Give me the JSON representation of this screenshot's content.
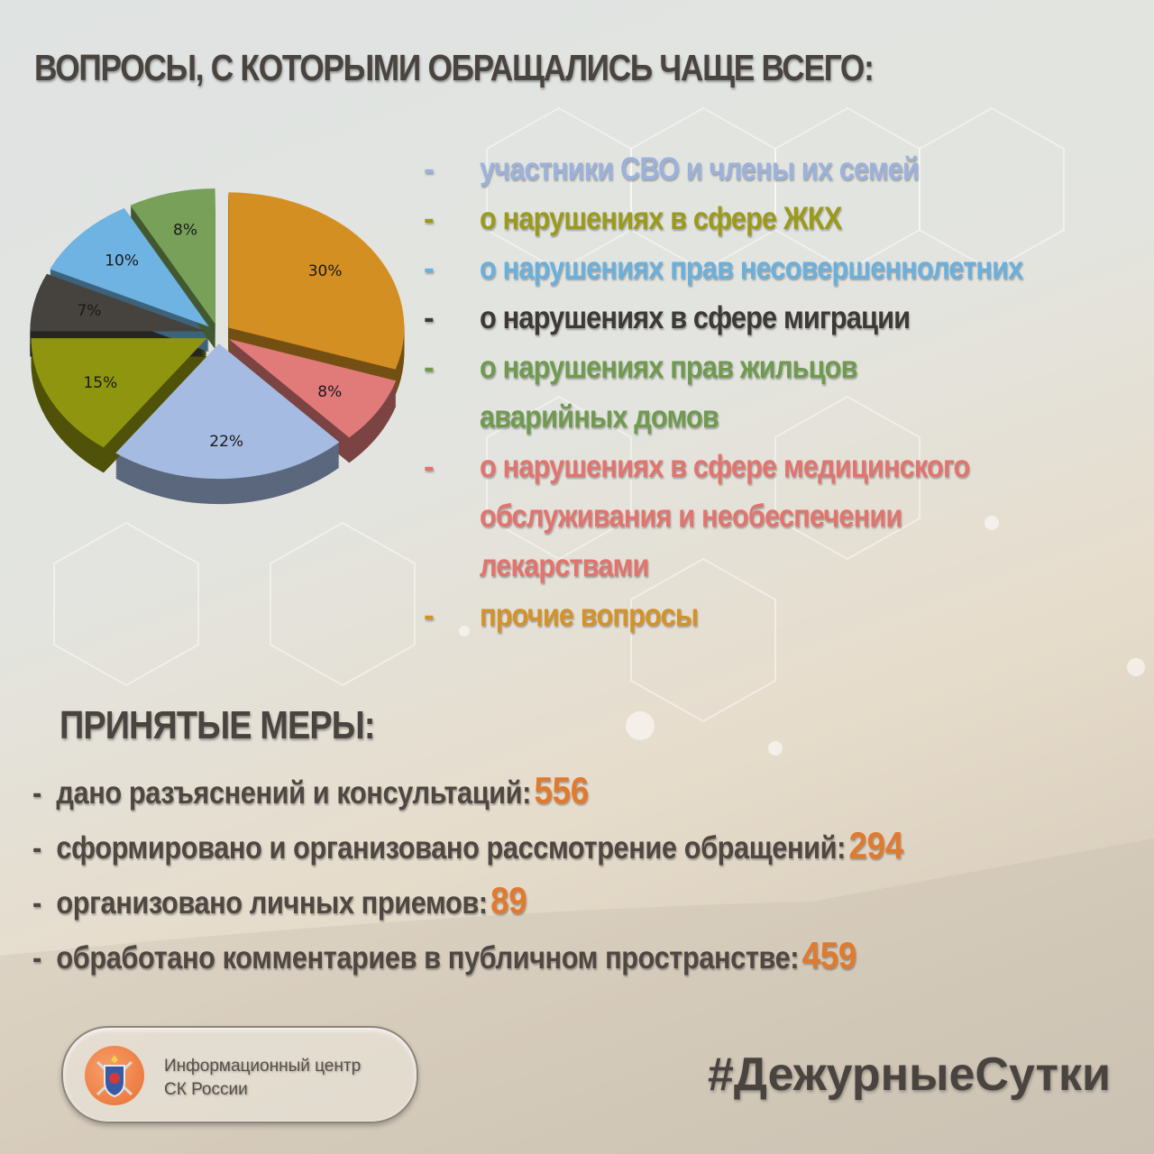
{
  "title": "ВОПРОСЫ, С КОТОРЫМИ ОБРАЩАЛИСЬ ЧАЩЕ ВСЕГО:",
  "chart_data": {
    "type": "pie",
    "title": "",
    "slices": [
      {
        "label": "прочие вопросы",
        "value": 30,
        "display": "30%",
        "color": "#d38f22"
      },
      {
        "label": "о нарушениях в сфере медицинского обслуживания и необеспечении лекарствами",
        "value": 8,
        "display": "8%",
        "color": "#e07b7a"
      },
      {
        "label": "участники СВО и члены их семей",
        "value": 22,
        "display": "22%",
        "color": "#a6bbe2"
      },
      {
        "label": "о нарушениях в сфере ЖКХ",
        "value": 15,
        "display": "15%",
        "color": "#8f950e"
      },
      {
        "label": "о нарушениях в сфере миграции",
        "value": 7,
        "display": "7%",
        "color": "#46433e"
      },
      {
        "label": "о нарушениях прав несовершеннолетних",
        "value": 10,
        "display": "10%",
        "color": "#6eb3e2"
      },
      {
        "label": "о нарушениях прав жильцов аварийных домов",
        "value": 8,
        "display": "8%",
        "color": "#78a058"
      }
    ],
    "style": "3d-exploded",
    "legend": "right"
  },
  "legend": [
    {
      "dash": "-",
      "text": "участники СВО и члены их семей",
      "color": "#9cb2da"
    },
    {
      "dash": "-",
      "text": "о нарушениях в сфере ЖКХ",
      "color": "#9b9a1c"
    },
    {
      "dash": "-",
      "text": "о нарушениях прав несовершеннолетних",
      "color": "#6bb0dc"
    },
    {
      "dash": "-",
      "text": "о нарушениях в сфере миграции",
      "color": "#3d3a36"
    },
    {
      "dash": "-",
      "text": "о нарушениях прав жильцов\nаварийных домов",
      "color": "#6f9a50"
    },
    {
      "dash": "-",
      "text": "о нарушениях в сфере медицинского\nобслуживания и необеспечении\nлекарствами",
      "color": "#e2746f"
    },
    {
      "dash": "-",
      "text": "прочие вопросы",
      "color": "#d3922a"
    }
  ],
  "measures": {
    "title": "ПРИНЯТЫЕ МЕРЫ:",
    "items": [
      {
        "dash": "-",
        "label": "дано разъяснений и консультаций:",
        "value": "556"
      },
      {
        "dash": "-",
        "label": "сформировано и организовано рассмотрение обращений:",
        "value": "294"
      },
      {
        "dash": "-",
        "label": "организовано личных приемов:",
        "value": "89"
      },
      {
        "dash": "-",
        "label": "обработано комментариев в публичном пространстве:",
        "value": "459"
      }
    ],
    "value_color": "#e07a2e"
  },
  "logo": {
    "line1": "Информационный центр",
    "line2": "СК России",
    "icon": "sk-russia-emblem"
  },
  "hashtag": "#ДежурныеСутки"
}
